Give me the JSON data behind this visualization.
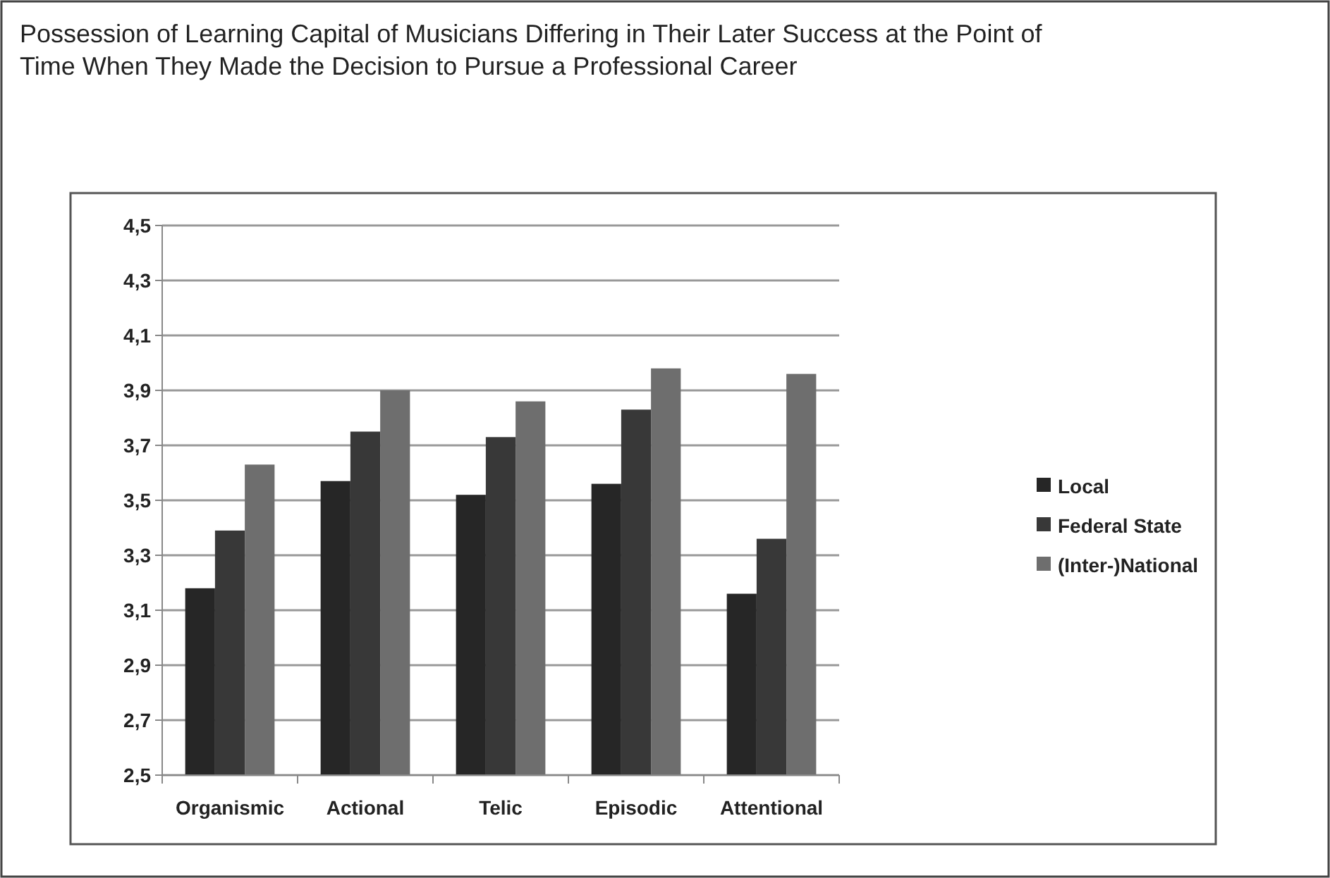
{
  "chart_data": {
    "type": "bar",
    "title": "Possession of Learning Capital of Musicians Differing in Their Later Success at the Point of Time When They Made the Decision to Pursue a Professional Career",
    "categories": [
      "Organismic",
      "Actional",
      "Telic",
      "Episodic",
      "Attentional"
    ],
    "series": [
      {
        "name": "Local",
        "color": "#262626",
        "values": [
          3.18,
          3.57,
          3.52,
          3.56,
          3.16
        ]
      },
      {
        "name": "Federal State",
        "color": "#383838",
        "values": [
          3.39,
          3.75,
          3.73,
          3.83,
          3.36
        ]
      },
      {
        "name": "(Inter-)National",
        "color": "#6e6e6e",
        "values": [
          3.63,
          3.9,
          3.86,
          3.98,
          3.96
        ]
      }
    ],
    "ylim": [
      2.5,
      4.5
    ],
    "yticks": [
      {
        "value": 2.5,
        "label": "2,5"
      },
      {
        "value": 2.7,
        "label": "2,7"
      },
      {
        "value": 2.9,
        "label": "2,9"
      },
      {
        "value": 3.1,
        "label": "3,1"
      },
      {
        "value": 3.3,
        "label": "3,3"
      },
      {
        "value": 3.5,
        "label": "3,5"
      },
      {
        "value": 3.7,
        "label": "3,7"
      },
      {
        "value": 3.9,
        "label": "3,9"
      },
      {
        "value": 4.1,
        "label": "4,1"
      },
      {
        "value": 4.3,
        "label": "4,3"
      },
      {
        "value": 4.5,
        "label": "4,5"
      }
    ],
    "grid": "y",
    "legend": "right"
  }
}
